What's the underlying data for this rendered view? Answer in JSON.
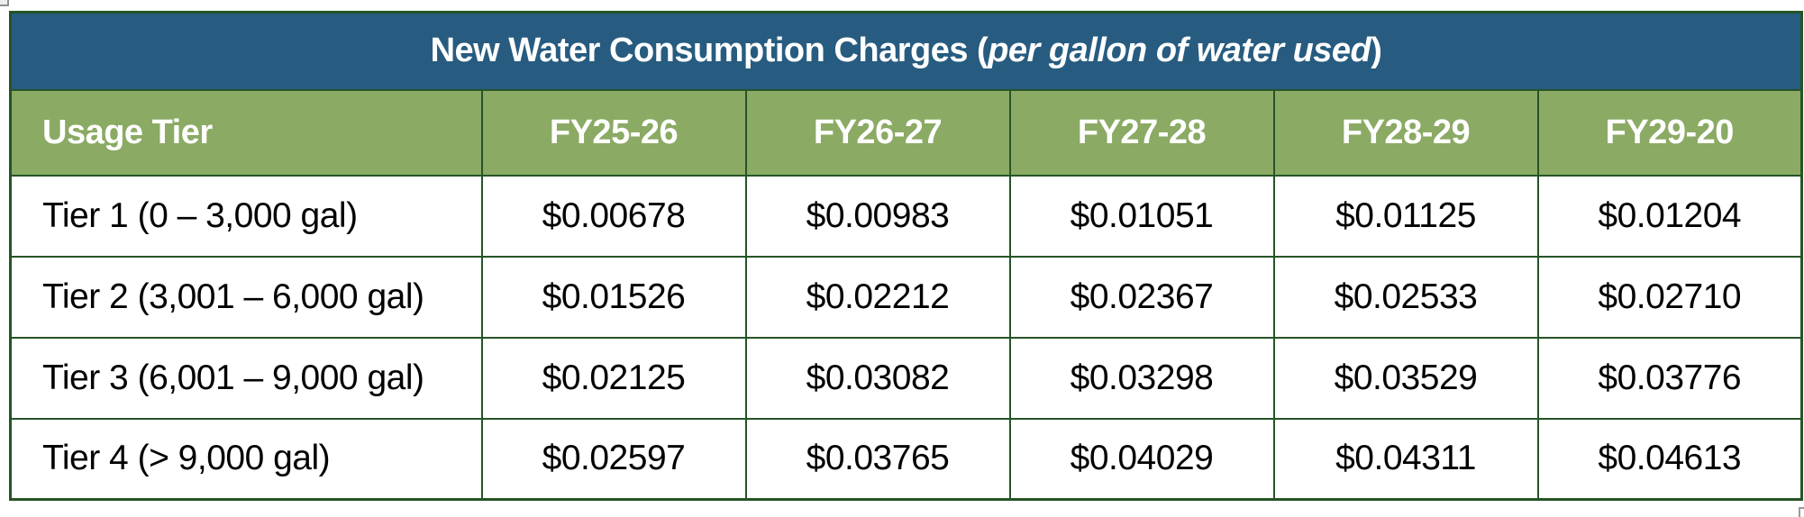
{
  "title": {
    "prefix": "New Water Consumption Charges (",
    "italic_text": "per gallon of water used",
    "suffix": ")"
  },
  "colors": {
    "title_bg": "#275C80",
    "header_bg": "#8BAA64",
    "grid_border": "#255427",
    "title_text": "#FFFFFF",
    "header_text": "#FFFFFF",
    "cell_text": "#000000"
  },
  "table": {
    "columns": [
      "Usage Tier",
      "FY25-26",
      "FY26-27",
      "FY27-28",
      "FY28-29",
      "FY29-20"
    ],
    "rows": [
      {
        "tier": "Tier 1 (0 – 3,000 gal)",
        "values": [
          "$0.00678",
          "$0.00983",
          "$0.01051",
          "$0.01125",
          "$0.01204"
        ]
      },
      {
        "tier": "Tier 2 (3,001 – 6,000 gal)",
        "values": [
          "$0.01526",
          "$0.02212",
          "$0.02367",
          "$0.02533",
          "$0.02710"
        ]
      },
      {
        "tier": "Tier 3 (6,001 – 9,000 gal)",
        "values": [
          "$0.02125",
          "$0.03082",
          "$0.03298",
          "$0.03529",
          "$0.03776"
        ]
      },
      {
        "tier": "Tier 4 (> 9,000 gal)",
        "values": [
          "$0.02597",
          "$0.03765",
          "$0.04029",
          "$0.04311",
          "$0.04613"
        ]
      }
    ]
  }
}
